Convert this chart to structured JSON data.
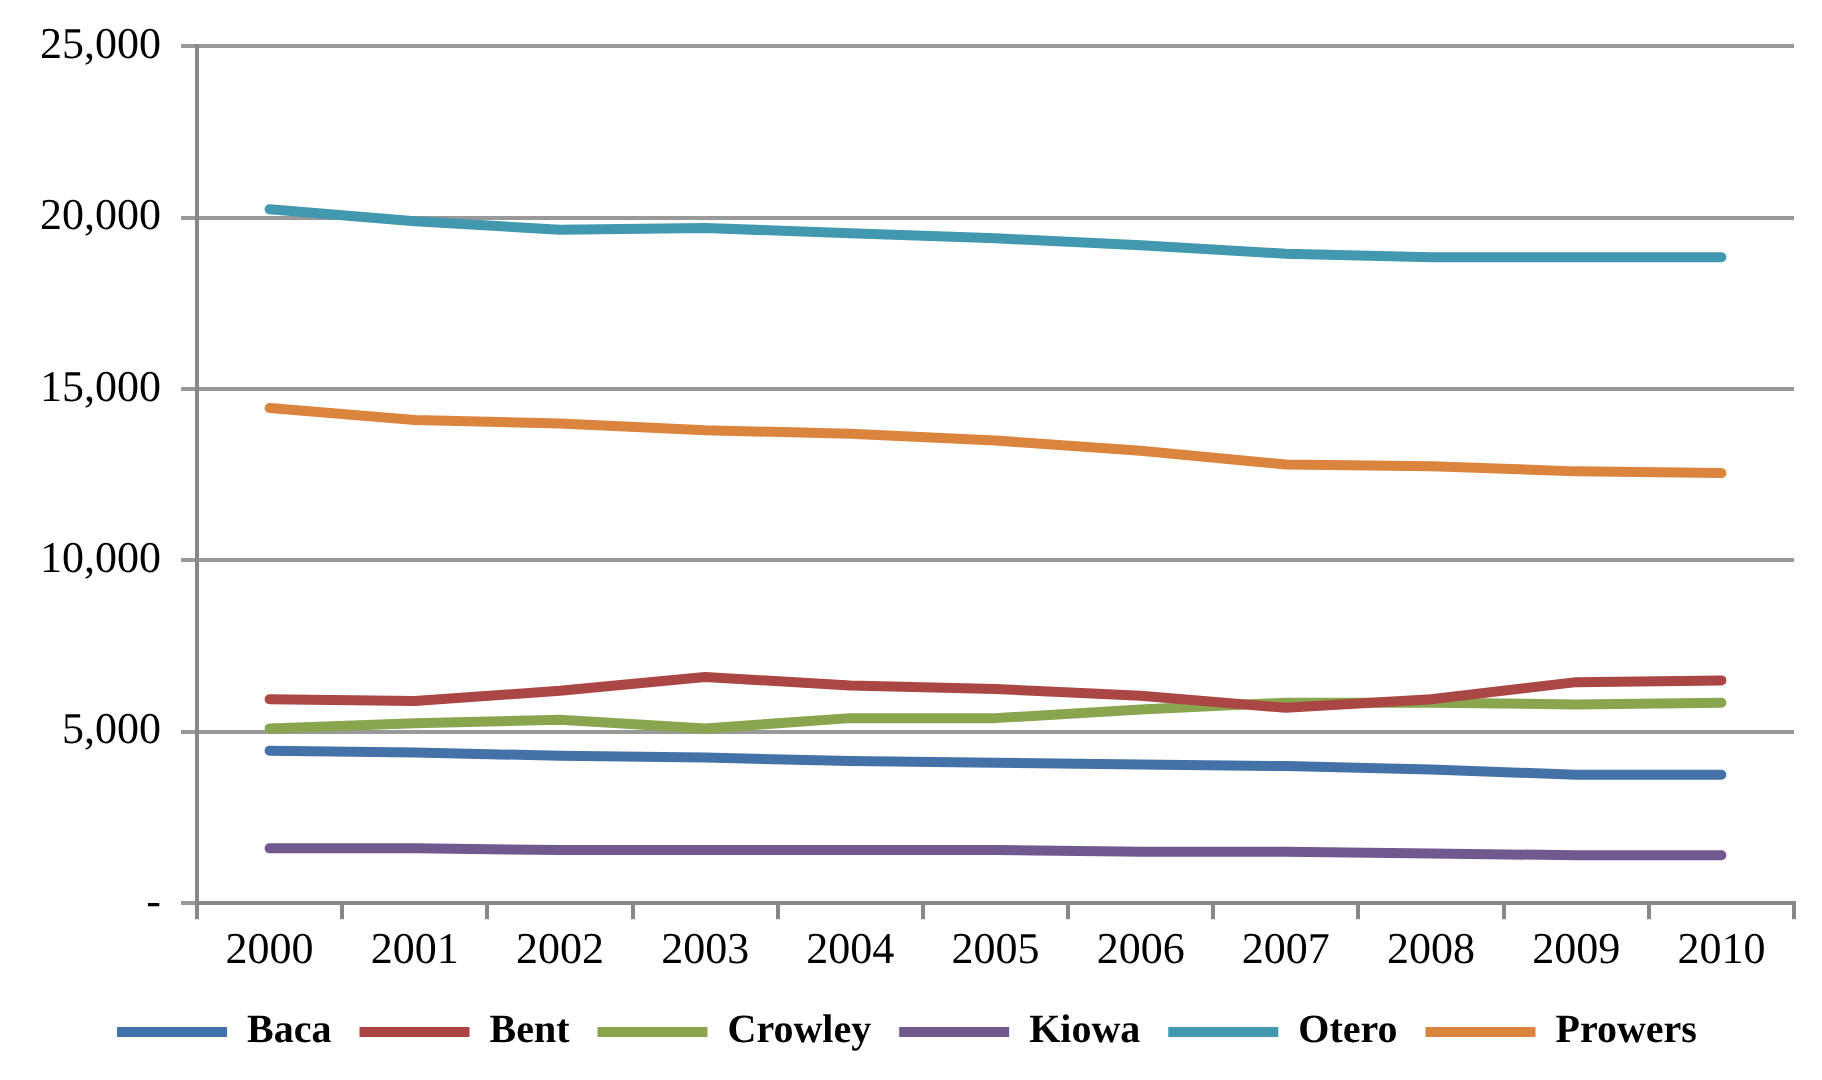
{
  "chart_data": {
    "type": "line",
    "categories": [
      "2000",
      "2001",
      "2002",
      "2003",
      "2004",
      "2005",
      "2006",
      "2007",
      "2008",
      "2009",
      "2010"
    ],
    "series": [
      {
        "name": "Baca",
        "color": "#4472a8",
        "values": [
          4450,
          4400,
          4300,
          4250,
          4150,
          4100,
          4050,
          4000,
          3900,
          3750,
          3750
        ]
      },
      {
        "name": "Bent",
        "color": "#aa4643",
        "values": [
          5950,
          5900,
          6200,
          6600,
          6350,
          6250,
          6050,
          5700,
          5950,
          6450,
          6500
        ]
      },
      {
        "name": "Crowley",
        "color": "#89a54e",
        "values": [
          5100,
          5250,
          5350,
          5100,
          5400,
          5400,
          5650,
          5850,
          5850,
          5800,
          5850
        ]
      },
      {
        "name": "Kiowa",
        "color": "#71588f",
        "values": [
          1600,
          1600,
          1550,
          1550,
          1550,
          1550,
          1500,
          1500,
          1450,
          1400,
          1400
        ]
      },
      {
        "name": "Otero",
        "color": "#4198af",
        "values": [
          20250,
          19900,
          19650,
          19700,
          19550,
          19400,
          19200,
          18950,
          18850,
          18850,
          18850
        ]
      },
      {
        "name": "Prowers",
        "color": "#db843d",
        "values": [
          14450,
          14100,
          14000,
          13800,
          13700,
          13500,
          13200,
          12800,
          12750,
          12600,
          12550
        ]
      }
    ],
    "ylim": [
      0,
      25000
    ],
    "yticks": [
      {
        "value": 0,
        "label": "-"
      },
      {
        "value": 5000,
        "label": "5,000"
      },
      {
        "value": 10000,
        "label": "10,000"
      },
      {
        "value": 15000,
        "label": "15,000"
      },
      {
        "value": 20000,
        "label": "20,000"
      },
      {
        "value": 25000,
        "label": "25,000"
      }
    ],
    "grid": "y",
    "legend": "bottom",
    "marker": "none",
    "line_style": "solid"
  }
}
